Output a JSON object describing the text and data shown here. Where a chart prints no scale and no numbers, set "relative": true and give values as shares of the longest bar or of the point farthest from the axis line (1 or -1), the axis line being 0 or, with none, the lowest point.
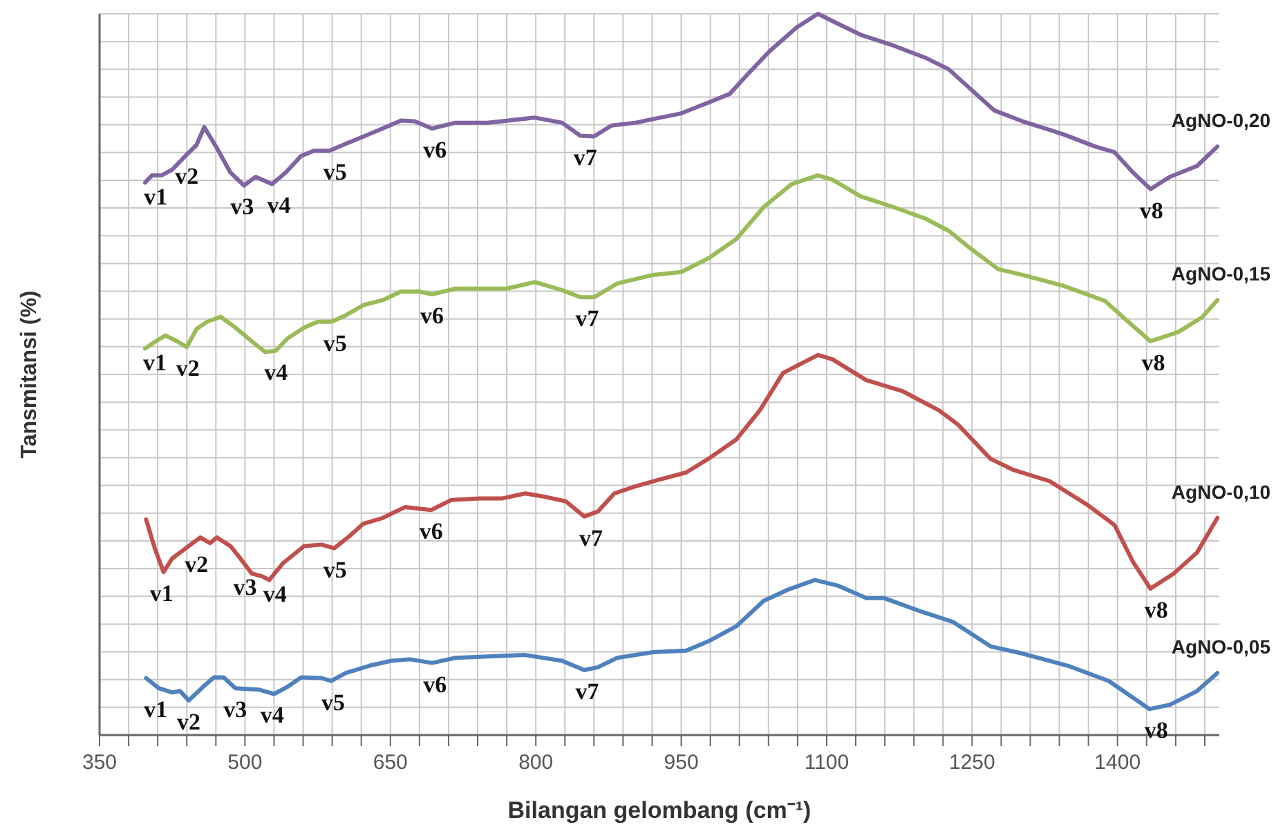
{
  "chart_data": {
    "type": "line",
    "relative": true,
    "xlabel": "Bilangan gelombang (cm⁻¹)",
    "ylabel": "Tansmitansi (%)",
    "xlim": [
      350,
      1505
    ],
    "xticks": [
      350,
      500,
      650,
      800,
      950,
      1100,
      1250,
      1400
    ],
    "grid": true,
    "line_style": "solid",
    "marker": "none",
    "series": [
      {
        "name": "AgNO-0,20",
        "color": "#8064a2",
        "x": [
          397,
          404,
          414,
          425,
          440,
          450,
          458,
          471,
          485,
          499,
          511,
          528,
          542,
          558,
          571,
          587,
          608,
          628,
          642,
          661,
          675,
          693,
          717,
          750,
          799,
          827,
          846,
          860,
          878,
          903,
          921,
          950,
          978,
          1000,
          1017,
          1041,
          1069,
          1091,
          1106,
          1135,
          1169,
          1202,
          1226,
          1249,
          1273,
          1302,
          1344,
          1377,
          1397,
          1416,
          1434,
          1454,
          1482,
          1503
        ],
        "values": [
          0.766,
          0.776,
          0.776,
          0.784,
          0.805,
          0.818,
          0.843,
          0.814,
          0.78,
          0.762,
          0.774,
          0.764,
          0.78,
          0.803,
          0.81,
          0.81,
          0.822,
          0.833,
          0.841,
          0.852,
          0.851,
          0.841,
          0.849,
          0.849,
          0.856,
          0.849,
          0.831,
          0.83,
          0.845,
          0.849,
          0.854,
          0.862,
          0.877,
          0.889,
          0.914,
          0.948,
          0.981,
          1.0,
          0.99,
          0.971,
          0.956,
          0.939,
          0.923,
          0.895,
          0.866,
          0.851,
          0.833,
          0.816,
          0.808,
          0.78,
          0.757,
          0.774,
          0.789,
          0.816
        ]
      },
      {
        "name": "AgNO-0,15",
        "color": "#9bbb59",
        "x": [
          397,
          408,
          418,
          430,
          440,
          450,
          461,
          475,
          490,
          507,
          521,
          532,
          544,
          561,
          575,
          589,
          604,
          622,
          642,
          661,
          679,
          693,
          717,
          770,
          799,
          827,
          846,
          860,
          884,
          921,
          950,
          978,
          1007,
          1035,
          1064,
          1091,
          1106,
          1135,
          1169,
          1202,
          1226,
          1249,
          1277,
          1302,
          1344,
          1387,
          1406,
          1434,
          1463,
          1487,
          1503
        ],
        "values": [
          0.536,
          0.546,
          0.554,
          0.546,
          0.538,
          0.563,
          0.573,
          0.58,
          0.565,
          0.546,
          0.531,
          0.533,
          0.55,
          0.565,
          0.573,
          0.573,
          0.582,
          0.596,
          0.603,
          0.615,
          0.615,
          0.611,
          0.619,
          0.619,
          0.628,
          0.617,
          0.607,
          0.607,
          0.626,
          0.638,
          0.642,
          0.661,
          0.688,
          0.732,
          0.764,
          0.776,
          0.77,
          0.747,
          0.732,
          0.716,
          0.699,
          0.674,
          0.646,
          0.638,
          0.623,
          0.602,
          0.579,
          0.546,
          0.559,
          0.579,
          0.603
        ]
      },
      {
        "name": "AgNO-0,10",
        "color": "#c0504d",
        "x": [
          398,
          407,
          416,
          425,
          437,
          454,
          464,
          471,
          485,
          494,
          507,
          518,
          525,
          539,
          561,
          579,
          592,
          608,
          622,
          642,
          665,
          692,
          713,
          742,
          765,
          789,
          807,
          831,
          850,
          864,
          881,
          903,
          927,
          955,
          978,
          1007,
          1031,
          1055,
          1091,
          1106,
          1141,
          1178,
          1216,
          1235,
          1269,
          1292,
          1330,
          1368,
          1397,
          1416,
          1434,
          1458,
          1482,
          1503
        ],
        "values": [
          0.299,
          0.259,
          0.226,
          0.245,
          0.257,
          0.274,
          0.266,
          0.274,
          0.262,
          0.247,
          0.224,
          0.22,
          0.215,
          0.238,
          0.262,
          0.264,
          0.259,
          0.276,
          0.293,
          0.301,
          0.316,
          0.312,
          0.326,
          0.328,
          0.328,
          0.335,
          0.331,
          0.324,
          0.303,
          0.31,
          0.335,
          0.345,
          0.354,
          0.364,
          0.383,
          0.41,
          0.45,
          0.502,
          0.527,
          0.521,
          0.492,
          0.477,
          0.45,
          0.431,
          0.383,
          0.368,
          0.352,
          0.32,
          0.291,
          0.24,
          0.203,
          0.224,
          0.253,
          0.301
        ]
      },
      {
        "name": "AgNO-0,05",
        "color": "#4f81bd",
        "x": [
          398,
          411,
          425,
          433,
          442,
          457,
          468,
          478,
          490,
          514,
          530,
          544,
          558,
          579,
          589,
          604,
          628,
          651,
          670,
          693,
          717,
          789,
          827,
          850,
          864,
          884,
          921,
          955,
          978,
          1007,
          1035,
          1059,
          1088,
          1112,
          1141,
          1159,
          1198,
          1230,
          1269,
          1302,
          1349,
          1391,
          1433,
          1454,
          1482,
          1503
        ],
        "values": [
          0.079,
          0.065,
          0.059,
          0.061,
          0.048,
          0.067,
          0.08,
          0.08,
          0.065,
          0.063,
          0.057,
          0.067,
          0.08,
          0.079,
          0.075,
          0.086,
          0.096,
          0.103,
          0.105,
          0.1,
          0.107,
          0.111,
          0.103,
          0.09,
          0.094,
          0.107,
          0.115,
          0.117,
          0.13,
          0.151,
          0.186,
          0.201,
          0.215,
          0.207,
          0.19,
          0.19,
          0.171,
          0.157,
          0.123,
          0.113,
          0.096,
          0.075,
          0.036,
          0.042,
          0.061,
          0.086
        ]
      }
    ],
    "annotations": [
      {
        "text": "v1",
        "x": 408,
        "y": 0.776
      },
      {
        "text": "v2",
        "x": 440,
        "y": 0.805
      },
      {
        "text": "v3",
        "x": 497,
        "y": 0.762
      },
      {
        "text": "v4",
        "x": 535,
        "y": 0.764
      },
      {
        "text": "v5",
        "x": 593,
        "y": 0.81
      },
      {
        "text": "v6",
        "x": 696,
        "y": 0.841
      },
      {
        "text": "v7",
        "x": 851,
        "y": 0.83
      },
      {
        "text": "v8",
        "x": 1435,
        "y": 0.757
      },
      {
        "text": "v1",
        "x": 407,
        "y": 0.546
      },
      {
        "text": "v2",
        "x": 441,
        "y": 0.538
      },
      {
        "text": "v4",
        "x": 532,
        "y": 0.533
      },
      {
        "text": "v5",
        "x": 593,
        "y": 0.573
      },
      {
        "text": "v6",
        "x": 693,
        "y": 0.611
      },
      {
        "text": "v7",
        "x": 853,
        "y": 0.607
      },
      {
        "text": "v8",
        "x": 1437,
        "y": 0.546
      },
      {
        "text": "v1",
        "x": 414,
        "y": 0.226
      },
      {
        "text": "v2",
        "x": 450,
        "y": 0.266
      },
      {
        "text": "v3",
        "x": 500,
        "y": 0.235
      },
      {
        "text": "v4",
        "x": 531,
        "y": 0.225
      },
      {
        "text": "v5",
        "x": 593,
        "y": 0.259
      },
      {
        "text": "v6",
        "x": 692,
        "y": 0.312
      },
      {
        "text": "v7",
        "x": 857,
        "y": 0.303
      },
      {
        "text": "v8",
        "x": 1440,
        "y": 0.203
      },
      {
        "text": "v1",
        "x": 408,
        "y": 0.065
      },
      {
        "text": "v2",
        "x": 442,
        "y": 0.048
      },
      {
        "text": "v3",
        "x": 490,
        "y": 0.065
      },
      {
        "text": "v4",
        "x": 528,
        "y": 0.057
      },
      {
        "text": "v5",
        "x": 591,
        "y": 0.075
      },
      {
        "text": "v6",
        "x": 696,
        "y": 0.1
      },
      {
        "text": "v7",
        "x": 853,
        "y": 0.09
      },
      {
        "text": "v8",
        "x": 1440,
        "y": 0.036
      }
    ]
  }
}
